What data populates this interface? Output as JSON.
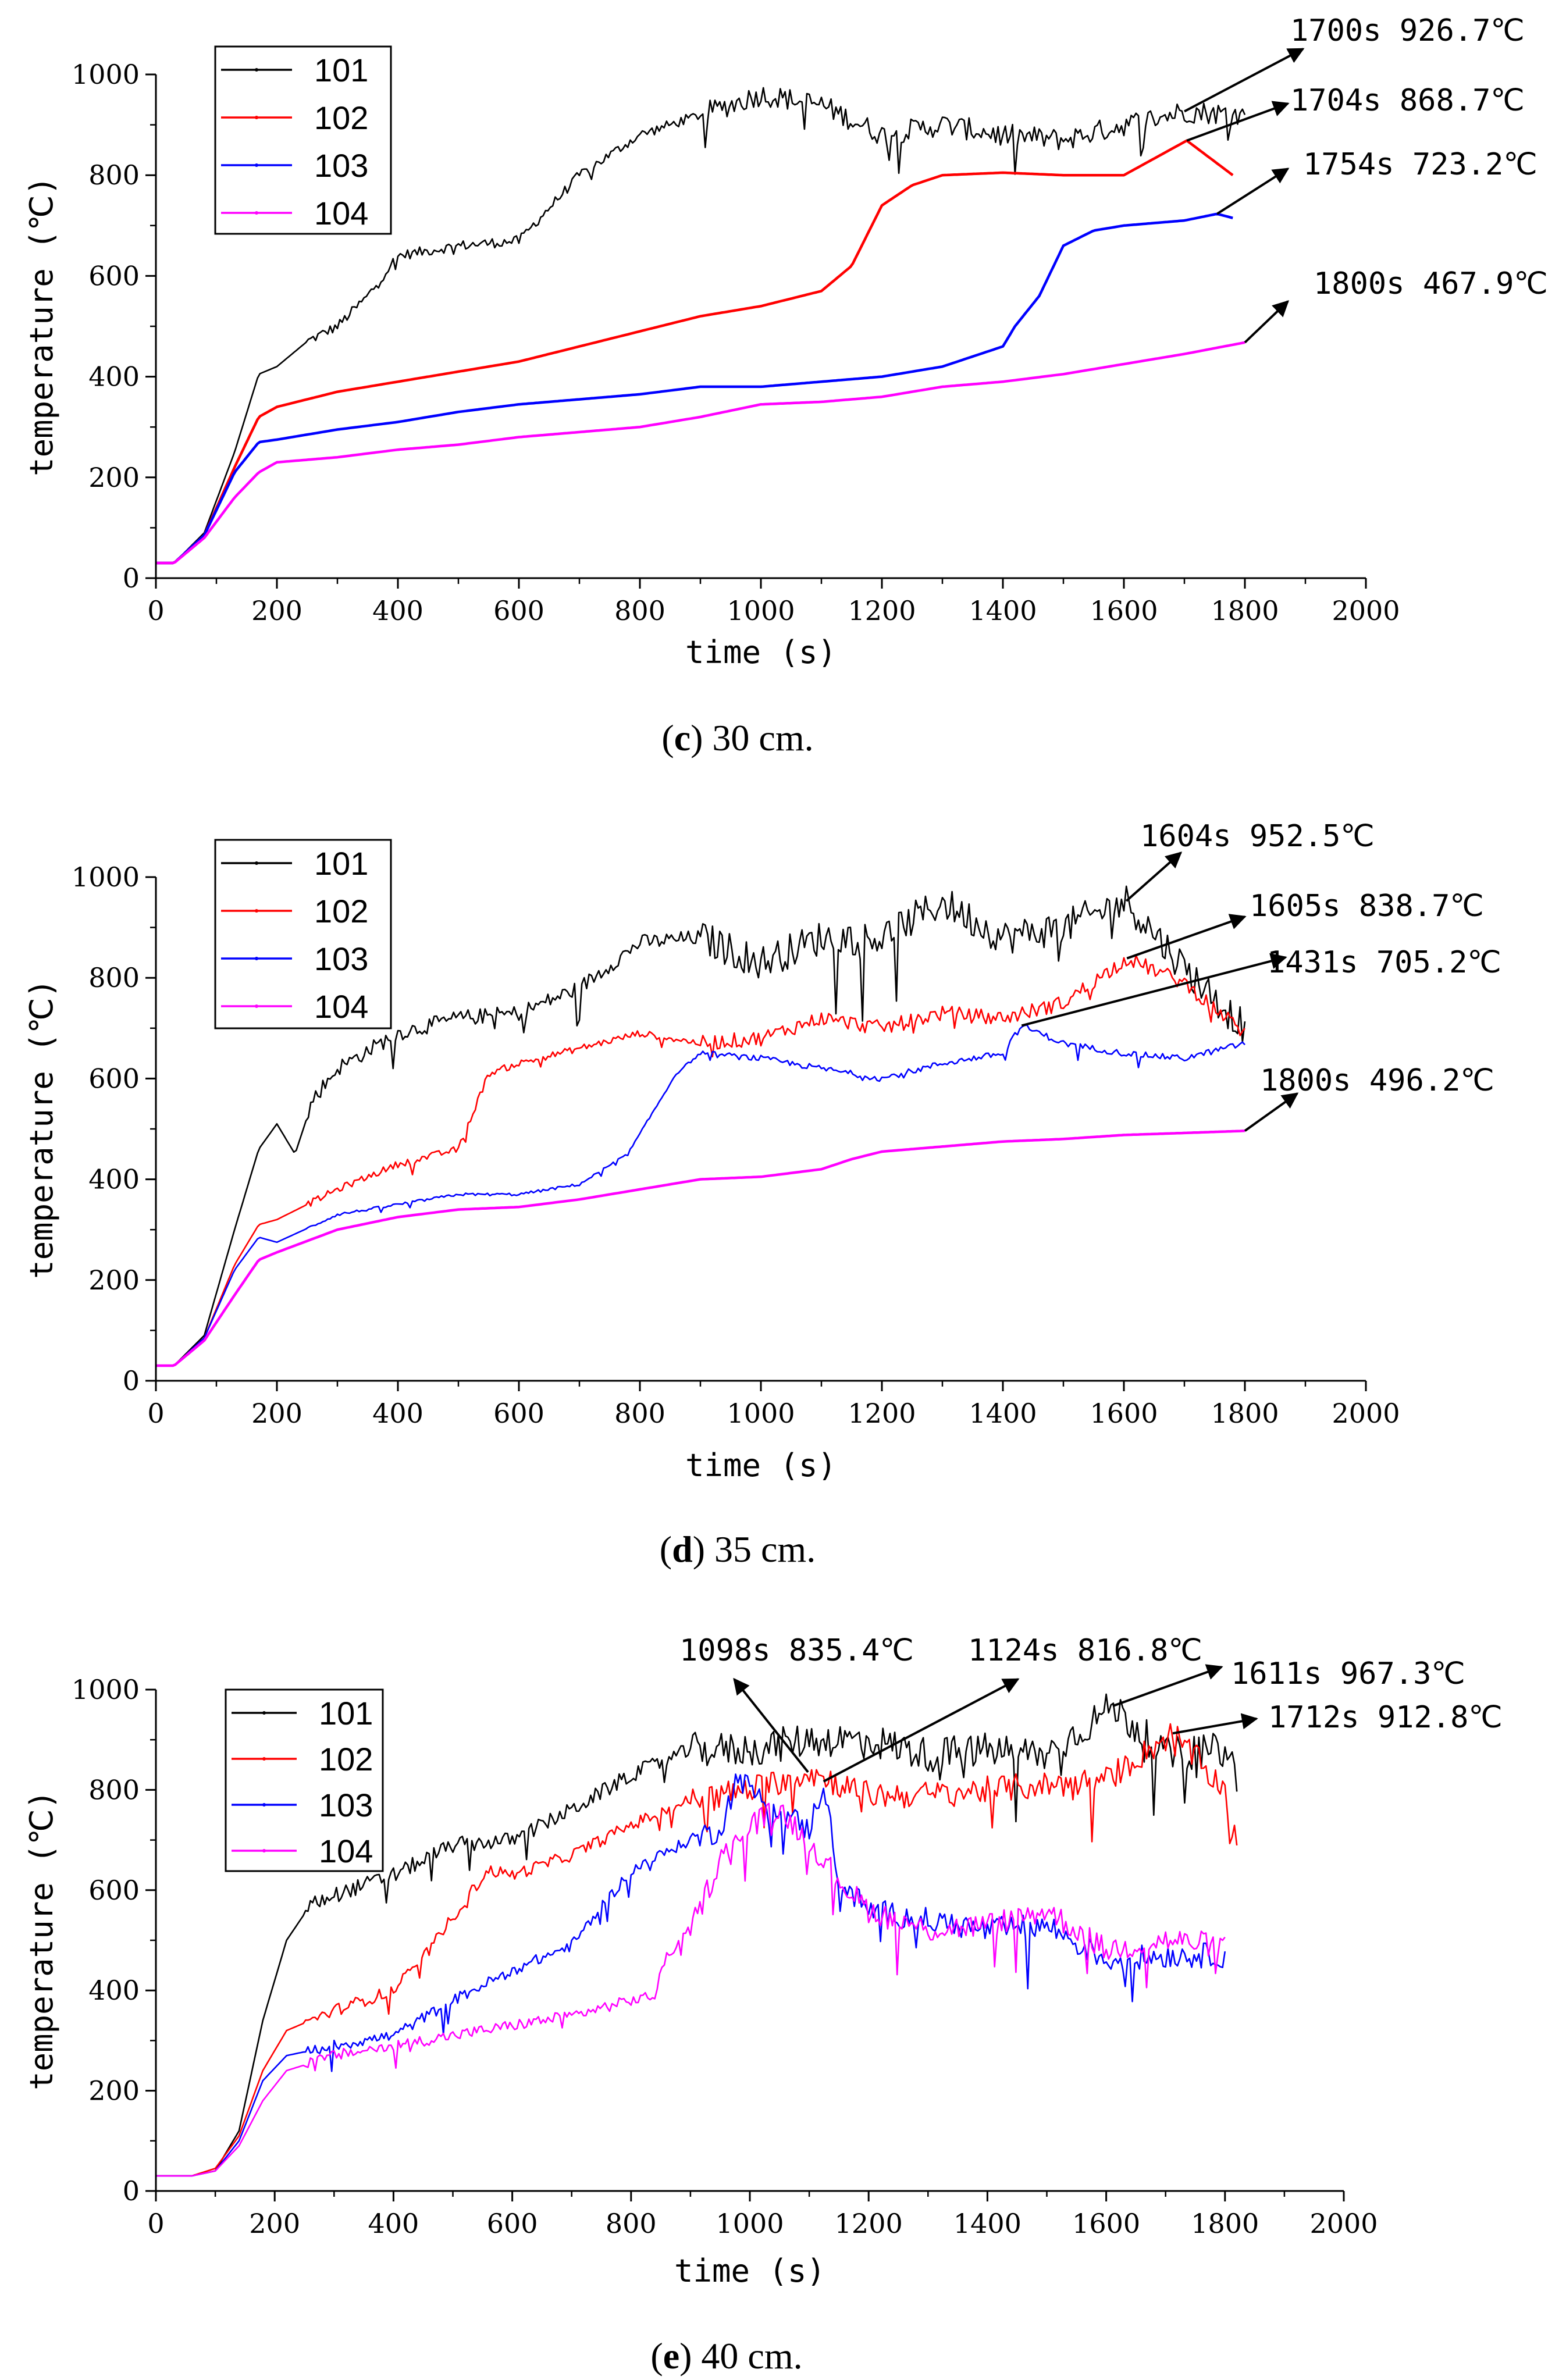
{
  "figure": {
    "captions": [
      {
        "letter": "c",
        "text": " 30 cm."
      },
      {
        "letter": "d",
        "text": " 35 cm."
      },
      {
        "letter": "e",
        "text": " 40 cm."
      }
    ]
  },
  "chart_data": [
    {
      "type": "line",
      "panel": "c",
      "caption": "(c) 30 cm.",
      "xlabel": "time (s)",
      "ylabel": "temperature (℃)",
      "xlim": [
        0,
        2000
      ],
      "ylim": [
        0,
        1000
      ],
      "xticks": [
        0,
        200,
        400,
        600,
        800,
        1000,
        1200,
        1400,
        1600,
        1800,
        2000
      ],
      "yticks": [
        0,
        200,
        400,
        600,
        800,
        1000
      ],
      "legend_position": "top-left",
      "series": [
        {
          "name": "101",
          "color": "#000000",
          "noise": 45,
          "x": [
            0,
            30,
            80,
            130,
            170,
            200,
            250,
            300,
            350,
            400,
            500,
            600,
            700,
            800,
            900,
            1000,
            1100,
            1200,
            1300,
            1400,
            1500,
            1600,
            1700,
            1800
          ],
          "y": [
            30,
            30,
            90,
            250,
            405,
            420,
            470,
            500,
            560,
            640,
            660,
            670,
            800,
            880,
            920,
            960,
            940,
            880,
            900,
            880,
            870,
            900,
            926.7,
            920
          ]
        },
        {
          "name": "102",
          "color": "#ff0000",
          "noise": 0,
          "x": [
            0,
            30,
            80,
            130,
            170,
            200,
            300,
            400,
            500,
            600,
            700,
            800,
            900,
            1000,
            1100,
            1150,
            1200,
            1250,
            1300,
            1400,
            1500,
            1600,
            1704,
            1780
          ],
          "y": [
            30,
            30,
            85,
            220,
            320,
            340,
            370,
            390,
            410,
            430,
            460,
            490,
            520,
            540,
            570,
            620,
            740,
            780,
            800,
            805,
            800,
            800,
            868.7,
            800
          ]
        },
        {
          "name": "103",
          "color": "#0000ff",
          "noise": 0,
          "x": [
            0,
            30,
            80,
            130,
            170,
            200,
            300,
            400,
            500,
            600,
            700,
            800,
            900,
            1000,
            1200,
            1300,
            1400,
            1420,
            1460,
            1500,
            1550,
            1600,
            1700,
            1754,
            1780
          ],
          "y": [
            30,
            30,
            85,
            210,
            270,
            275,
            295,
            310,
            330,
            345,
            355,
            365,
            380,
            380,
            400,
            420,
            460,
            500,
            560,
            660,
            690,
            700,
            710,
            723.2,
            715
          ]
        },
        {
          "name": "104",
          "color": "#ff00ff",
          "noise": 0,
          "x": [
            0,
            30,
            80,
            130,
            170,
            200,
            250,
            300,
            400,
            500,
            600,
            700,
            800,
            900,
            1000,
            1100,
            1200,
            1300,
            1400,
            1500,
            1600,
            1700,
            1800
          ],
          "y": [
            30,
            30,
            80,
            160,
            210,
            230,
            235,
            240,
            255,
            265,
            280,
            290,
            300,
            320,
            345,
            350,
            360,
            380,
            390,
            405,
            425,
            445,
            467.9
          ]
        }
      ],
      "annotations": [
        {
          "label": "1700s 926.7℃",
          "x": 1700,
          "y": 926.7
        },
        {
          "label": "1704s 868.7℃",
          "x": 1704,
          "y": 868.7
        },
        {
          "label": "1754s 723.2℃",
          "x": 1754,
          "y": 723.2
        },
        {
          "label": "1800s 467.9℃",
          "x": 1800,
          "y": 467.9
        }
      ]
    },
    {
      "type": "line",
      "panel": "d",
      "caption": "(d) 35 cm.",
      "xlabel": "time (s)",
      "ylabel": "temperature (℃)",
      "xlim": [
        0,
        2000
      ],
      "ylim": [
        0,
        1000
      ],
      "xticks": [
        0,
        200,
        400,
        600,
        800,
        1000,
        1200,
        1400,
        1600,
        1800,
        2000
      ],
      "yticks": [
        0,
        200,
        400,
        600,
        800,
        1000
      ],
      "legend_position": "top-left",
      "series": [
        {
          "name": "101",
          "color": "#000000",
          "noise": 70,
          "x": [
            0,
            30,
            80,
            130,
            170,
            200,
            230,
            260,
            300,
            400,
            500,
            600,
            700,
            800,
            900,
            1000,
            1100,
            1200,
            1300,
            1400,
            1500,
            1604,
            1700,
            1800
          ],
          "y": [
            30,
            30,
            90,
            300,
            460,
            510,
            450,
            560,
            620,
            690,
            720,
            730,
            780,
            870,
            880,
            830,
            880,
            880,
            950,
            880,
            900,
            952.5,
            820,
            700
          ]
        },
        {
          "name": "102",
          "color": "#ff0000",
          "noise": 30,
          "x": [
            0,
            30,
            80,
            130,
            170,
            200,
            300,
            400,
            500,
            550,
            600,
            700,
            800,
            900,
            1000,
            1100,
            1200,
            1300,
            1400,
            1500,
            1605,
            1700,
            1800
          ],
          "y": [
            30,
            30,
            85,
            230,
            310,
            320,
            380,
            430,
            460,
            610,
            630,
            660,
            690,
            670,
            680,
            720,
            700,
            730,
            720,
            750,
            838.7,
            790,
            690
          ]
        },
        {
          "name": "103",
          "color": "#0000ff",
          "noise": 12,
          "x": [
            0,
            30,
            80,
            130,
            170,
            200,
            300,
            400,
            500,
            600,
            700,
            780,
            820,
            860,
            900,
            1000,
            1100,
            1200,
            1300,
            1400,
            1431,
            1500,
            1600,
            1700,
            1800
          ],
          "y": [
            30,
            30,
            85,
            220,
            285,
            275,
            330,
            350,
            370,
            370,
            390,
            450,
            530,
            610,
            650,
            640,
            620,
            600,
            630,
            650,
            705.2,
            670,
            650,
            640,
            670
          ]
        },
        {
          "name": "104",
          "color": "#ff00ff",
          "noise": 0,
          "x": [
            0,
            30,
            80,
            130,
            170,
            200,
            300,
            400,
            500,
            600,
            700,
            800,
            900,
            1000,
            1100,
            1150,
            1200,
            1300,
            1400,
            1500,
            1600,
            1700,
            1800
          ],
          "y": [
            30,
            30,
            80,
            170,
            240,
            255,
            300,
            325,
            340,
            345,
            360,
            380,
            400,
            405,
            420,
            440,
            455,
            465,
            475,
            480,
            488,
            492,
            496.2
          ]
        }
      ],
      "annotations": [
        {
          "label": "1604s 952.5℃",
          "x": 1604,
          "y": 952.5
        },
        {
          "label": "1605s 838.7℃",
          "x": 1605,
          "y": 838.7
        },
        {
          "label": "1431s 705.2℃",
          "x": 1431,
          "y": 705.2
        },
        {
          "label": "1800s 496.2℃",
          "x": 1800,
          "y": 496.2
        }
      ]
    },
    {
      "type": "line",
      "panel": "e",
      "caption": "(e) 40 cm.",
      "xlabel": "time (s)",
      "ylabel": "temperature (℃)",
      "xlim": [
        0,
        2000
      ],
      "ylim": [
        0,
        1000
      ],
      "xticks": [
        0,
        200,
        400,
        600,
        800,
        1000,
        1200,
        1400,
        1600,
        1800,
        2000
      ],
      "yticks": [
        0,
        200,
        400,
        600,
        800,
        1000
      ],
      "legend_position": "top-left",
      "series": [
        {
          "name": "101",
          "color": "#000000",
          "noise": 70,
          "x": [
            0,
            60,
            100,
            140,
            180,
            220,
            260,
            300,
            400,
            500,
            600,
            700,
            800,
            900,
            1000,
            1100,
            1200,
            1300,
            1400,
            1500,
            1611,
            1700,
            1800,
            1820
          ],
          "y": [
            30,
            30,
            40,
            120,
            340,
            500,
            570,
            590,
            630,
            690,
            700,
            760,
            830,
            880,
            880,
            900,
            900,
            870,
            880,
            870,
            967.3,
            870,
            880,
            830
          ]
        },
        {
          "name": "102",
          "color": "#ff0000",
          "noise": 55,
          "x": [
            0,
            60,
            100,
            140,
            180,
            220,
            300,
            400,
            460,
            520,
            560,
            600,
            700,
            800,
            900,
            1000,
            1098,
            1200,
            1300,
            1400,
            1500,
            1600,
            1712,
            1800,
            1820
          ],
          "y": [
            30,
            30,
            45,
            110,
            240,
            320,
            360,
            400,
            480,
            580,
            640,
            630,
            670,
            730,
            780,
            800,
            835.4,
            790,
            790,
            800,
            810,
            820,
            912.8,
            800,
            680
          ]
        },
        {
          "name": "103",
          "color": "#0000ff",
          "noise": 50,
          "x": [
            0,
            60,
            100,
            140,
            180,
            220,
            300,
            400,
            500,
            600,
            700,
            760,
            800,
            850,
            900,
            950,
            980,
            1000,
            1050,
            1100,
            1124,
            1150,
            1200,
            1300,
            1400,
            1500,
            1600,
            1700,
            1800
          ],
          "y": [
            30,
            30,
            40,
            100,
            220,
            270,
            290,
            310,
            380,
            440,
            490,
            580,
            640,
            670,
            700,
            720,
            830,
            800,
            760,
            720,
            816.8,
            620,
            560,
            540,
            520,
            530,
            460,
            470,
            470
          ]
        },
        {
          "name": "104",
          "color": "#ff00ff",
          "noise": 50,
          "x": [
            0,
            60,
            100,
            140,
            180,
            220,
            300,
            400,
            500,
            600,
            700,
            800,
            840,
            860,
            900,
            950,
            1000,
            1050,
            1100,
            1150,
            1200,
            1300,
            1400,
            1500,
            1600,
            1700,
            1800
          ],
          "y": [
            30,
            30,
            40,
            90,
            180,
            240,
            270,
            290,
            310,
            330,
            350,
            380,
            390,
            470,
            520,
            660,
            730,
            760,
            700,
            620,
            560,
            520,
            530,
            560,
            480,
            500,
            490
          ]
        }
      ],
      "annotations": [
        {
          "label": "1098s 835.4℃",
          "x": 1098,
          "y": 835.4
        },
        {
          "label": "1124s 816.8℃",
          "x": 1124,
          "y": 816.8
        },
        {
          "label": "1611s 967.3℃",
          "x": 1611,
          "y": 967.3
        },
        {
          "label": "1712s 912.8℃",
          "x": 1712,
          "y": 912.8
        }
      ]
    }
  ]
}
